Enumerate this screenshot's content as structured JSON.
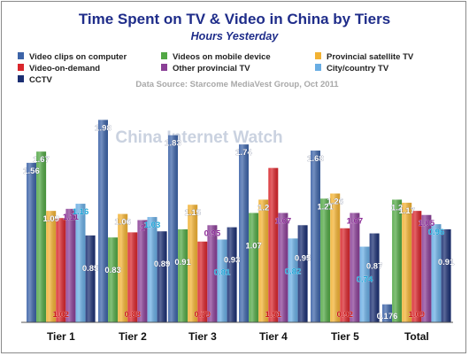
{
  "chart_data": {
    "type": "bar",
    "title": "Time Spent on TV & Video in China by Tiers",
    "subtitle": "Hours Yesterday",
    "source": "Data Source: Starcome MediaVest Group, Oct 2011",
    "watermark": "China Internet Watch",
    "categories": [
      "Tier 1",
      "Tier 2",
      "Tier 3",
      "Tier 4",
      "Tier 5",
      "Total"
    ],
    "ylim": [
      0,
      2.2
    ],
    "grid": false,
    "legend_position": "top",
    "series": [
      {
        "name": "Video clips on computer",
        "color": "#3d64a8",
        "label_color": "#ffffff",
        "values": [
          1.56,
          1.98,
          1.83,
          1.74,
          1.68,
          0.176
        ]
      },
      {
        "name": "Videos on mobile device",
        "color": "#52a845",
        "label_color": "#ffffff",
        "values": [
          1.67,
          0.83,
          0.91,
          1.07,
          1.21,
          1.2
        ]
      },
      {
        "name": "Provincial satellite TV",
        "color": "#f2b233",
        "label_color": "#ffffff",
        "values": [
          1.09,
          1.06,
          1.15,
          1.2,
          1.26,
          1.17
        ]
      },
      {
        "name": "Video-on-demand",
        "color": "#d9262c",
        "label_color": "#cc1b1b",
        "values": [
          1.02,
          0.88,
          0.79,
          1.51,
          0.92,
          1.09
        ]
      },
      {
        "name": "Other provincial TV",
        "color": "#8a3f96",
        "label_color": "#8a2a96",
        "values": [
          1.11,
          1,
          0.95,
          1.07,
          1.07,
          1.05
        ]
      },
      {
        "name": "City/country TV",
        "color": "#69ade3",
        "label_color": "#1ea6d8",
        "values": [
          1.16,
          1.03,
          0.81,
          0.82,
          0.74,
          0.96
        ]
      },
      {
        "name": "CCTV",
        "color": "#1b2f72",
        "label_color": "#ffffff",
        "values": [
          0.85,
          0.89,
          0.93,
          0.95,
          0.87,
          0.91
        ]
      }
    ],
    "value_labels": [
      [
        "1.56",
        "1.98",
        "1.83",
        "1.74",
        "1.68",
        "0.176"
      ],
      [
        "1.67",
        "0.83",
        "0.91",
        "1.07",
        "1.21",
        "1.2"
      ],
      [
        "1.09",
        "1.06",
        "1.15",
        "1.2",
        "1.26",
        "1.17"
      ],
      [
        "1.02",
        "0.88",
        "0.79",
        "1.51",
        "0.92",
        "1.09"
      ],
      [
        "1.11",
        "1",
        "0.95",
        "1.07",
        "1.07",
        "1.05"
      ],
      [
        "1.16",
        "1.03",
        "0.81",
        "0.82",
        "0.74",
        "0.96"
      ],
      [
        "0.85",
        "0.89",
        "0.93",
        "0.95",
        "0.87",
        "0.91"
      ]
    ]
  }
}
